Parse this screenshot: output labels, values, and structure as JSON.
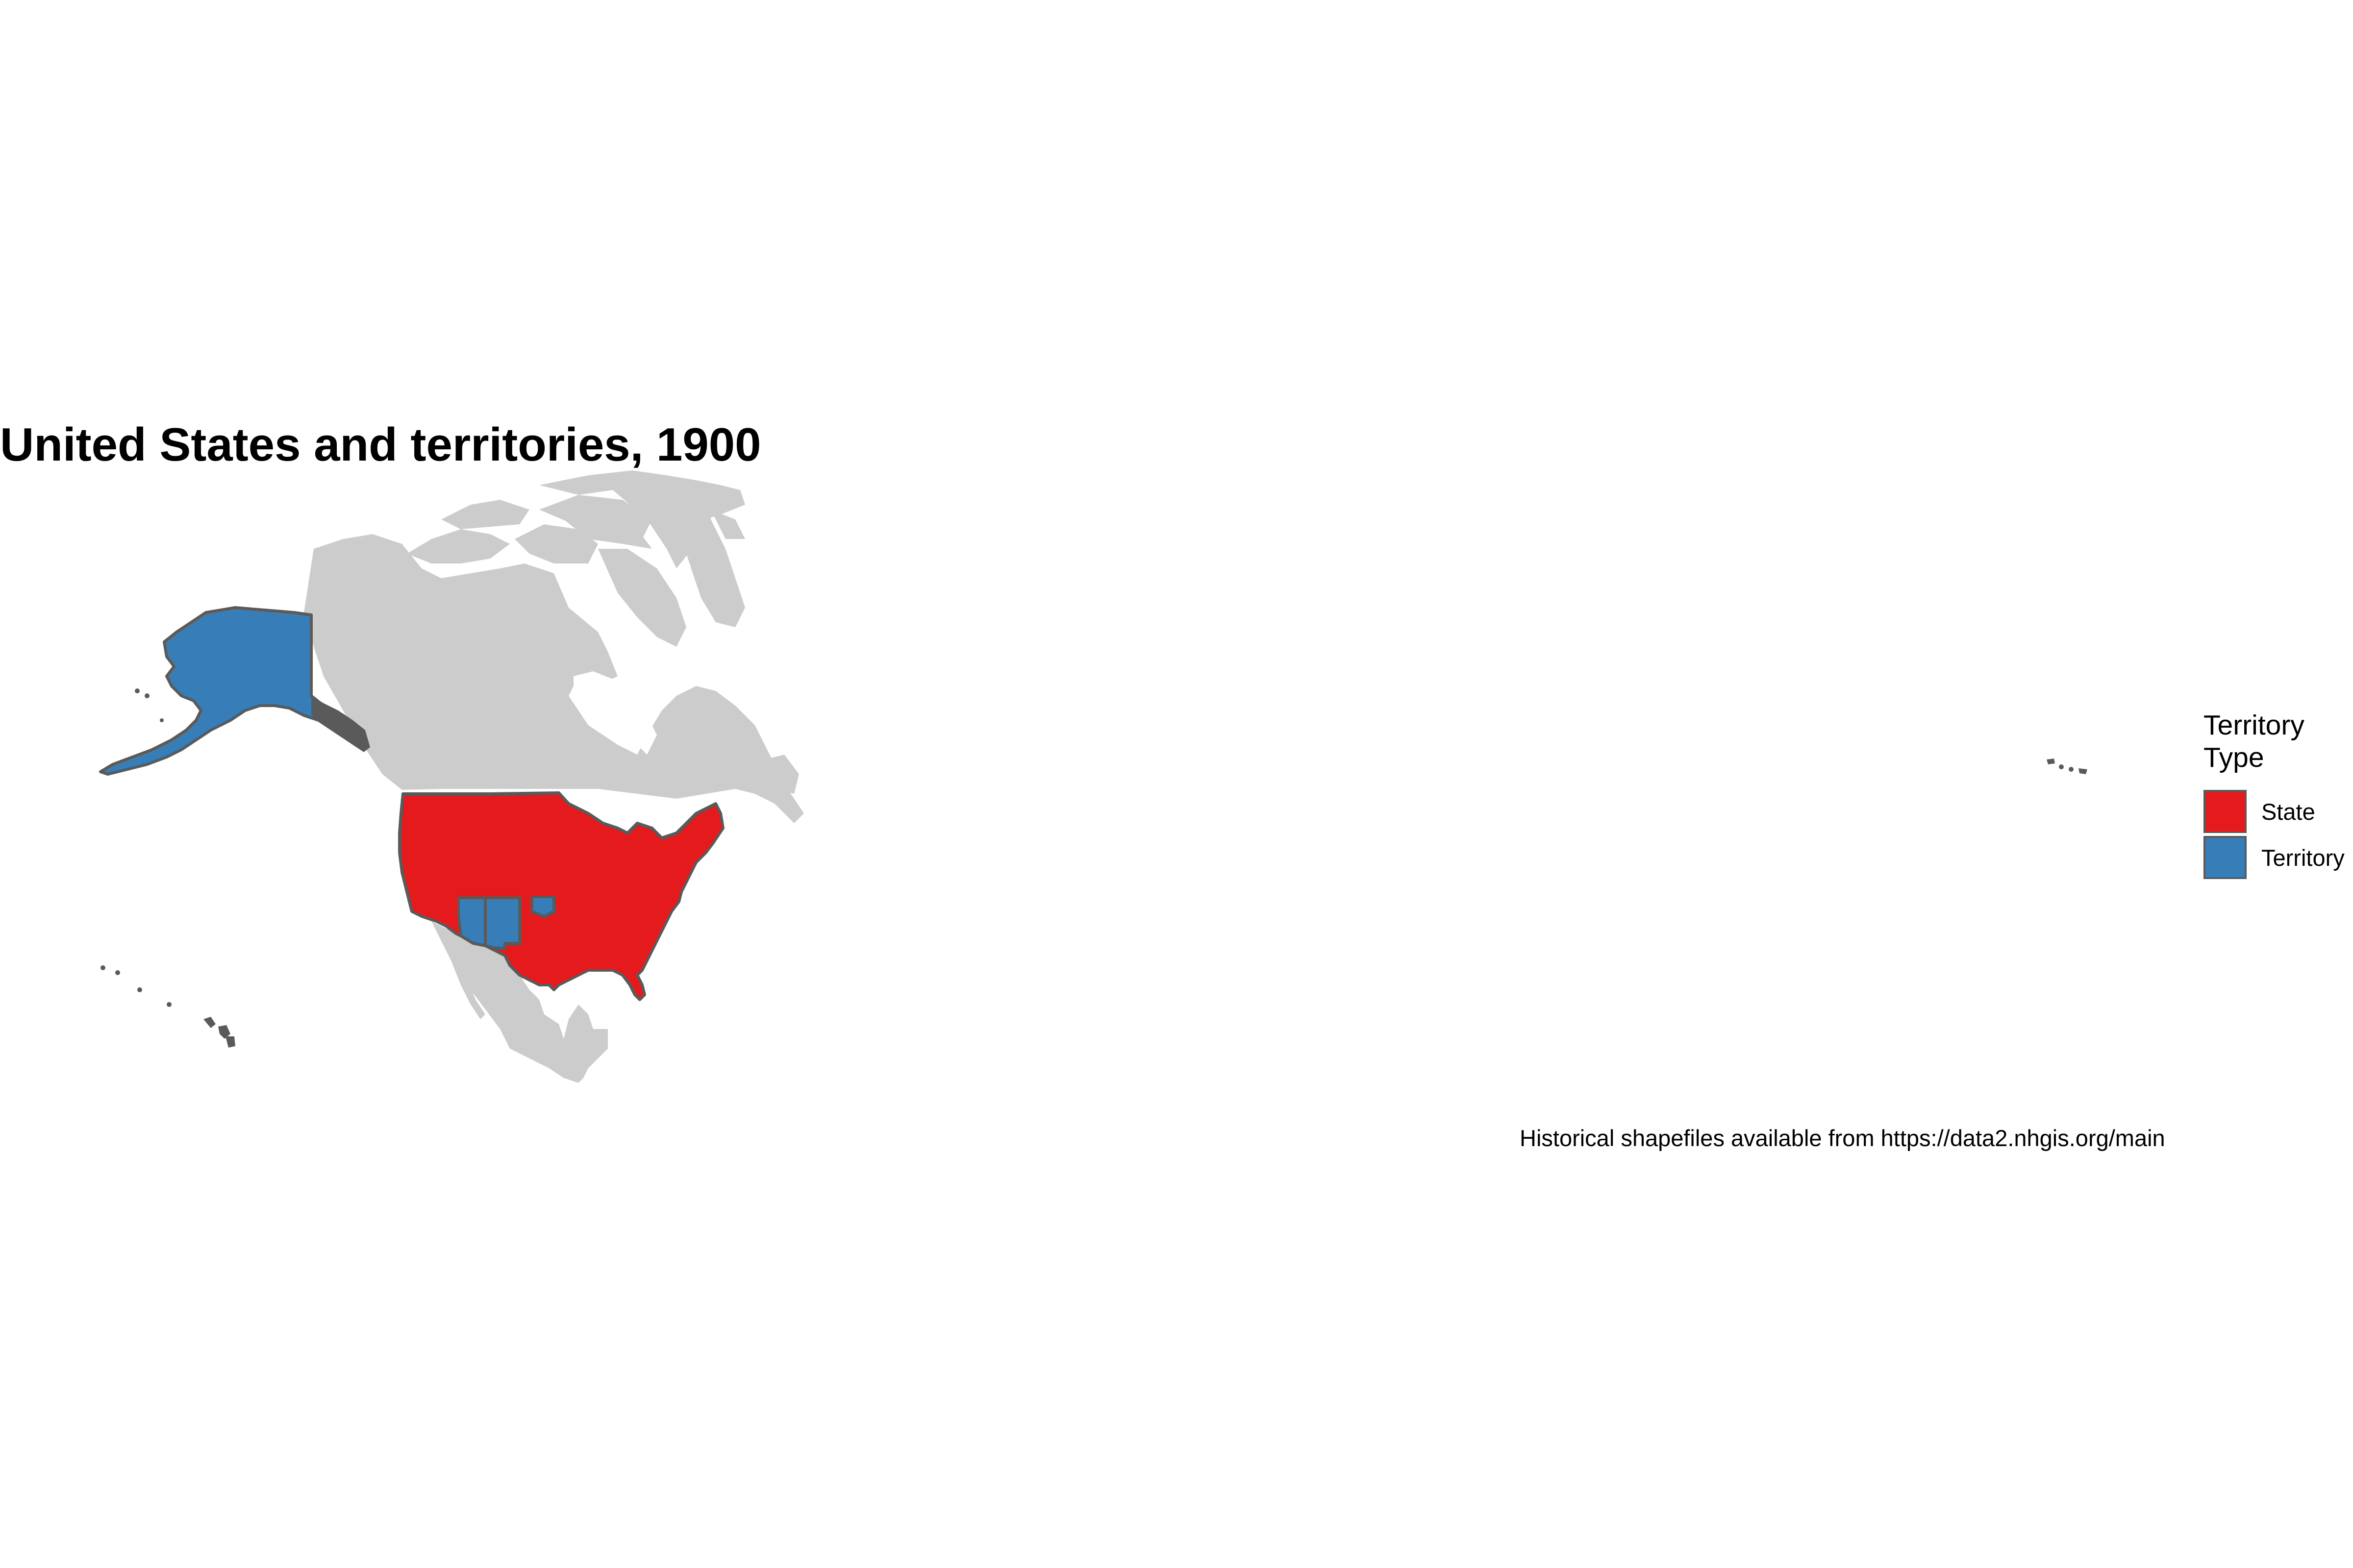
{
  "title": "United States and territories, 1900",
  "caption": "Historical shapefiles available from https://data2.nhgis.org/main",
  "legend": {
    "title": "Territory Type",
    "items": [
      {
        "label": "State",
        "color": "#E41A1C"
      },
      {
        "label": "Territory",
        "color": "#377EB8"
      }
    ]
  },
  "colors": {
    "background_land": "#cccccc",
    "border": "#5a5a5a",
    "state": "#E41A1C",
    "territory": "#377EB8"
  }
}
